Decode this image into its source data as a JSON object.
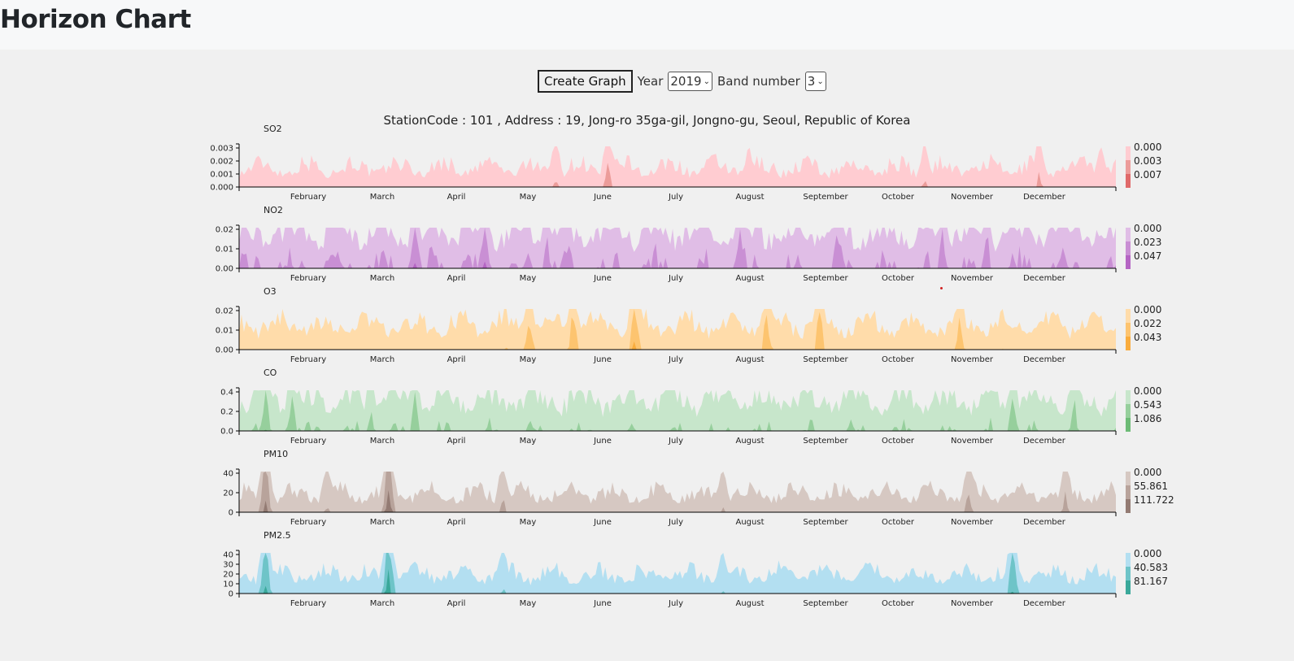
{
  "header": {
    "title": "Horizon Chart"
  },
  "controls": {
    "create_label": "Create Graph",
    "year_label": "Year",
    "year_value": "2019",
    "band_label": "Band number",
    "band_value": "3"
  },
  "station_text": "StationCode : 101 , Address : 19, Jong-ro 35ga-gil, Jongno-gu, Seoul, Republic of Korea",
  "chart_data": [
    {
      "type": "area",
      "title": "SO2",
      "months": [
        "February",
        "March",
        "April",
        "May",
        "June",
        "July",
        "August",
        "September",
        "October",
        "November",
        "December"
      ],
      "y_ticks": [
        "0.003",
        "0.002",
        "0.001",
        "0.000"
      ],
      "legend": [
        "0.000",
        "0.003",
        "0.007"
      ],
      "colors": [
        "#ffccd1",
        "#ec9c9a",
        "#e06a6a"
      ],
      "band_max": 0.0034,
      "base": 0.0022,
      "spikes": [
        [
          0.09,
          0.0012
        ],
        [
          0.36,
          0.0048
        ],
        [
          0.42,
          0.0062
        ],
        [
          0.91,
          0.0052
        ],
        [
          0.98,
          0.0044
        ],
        [
          0.58,
          0.0038
        ],
        [
          0.78,
          0.0045
        ]
      ]
    },
    {
      "type": "area",
      "title": "NO2",
      "months": [
        "February",
        "March",
        "April",
        "May",
        "June",
        "July",
        "August",
        "September",
        "October",
        "November",
        "December"
      ],
      "y_ticks": [
        "0.02",
        "0.01",
        "0.00"
      ],
      "legend": [
        "0.000",
        "0.023",
        "0.047"
      ],
      "colors": [
        "#e0bde6",
        "#c98fd4",
        "#b565c4"
      ],
      "band_max": 0.024,
      "base": 0.03,
      "spikes": [
        [
          0.2,
          0.058
        ],
        [
          0.28,
          0.055
        ],
        [
          0.35,
          0.05
        ],
        [
          0.57,
          0.052
        ],
        [
          0.68,
          0.054
        ],
        [
          0.8,
          0.05
        ],
        [
          0.85,
          0.053
        ]
      ]
    },
    {
      "type": "area",
      "title": "O3",
      "months": [
        "February",
        "March",
        "April",
        "May",
        "June",
        "July",
        "August",
        "September",
        "October",
        "November",
        "December"
      ],
      "y_ticks": [
        "0.02",
        "0.01",
        "0.00"
      ],
      "legend": [
        "0.000",
        "0.022",
        "0.043"
      ],
      "colors": [
        "#ffdcaa",
        "#fdc46f",
        "#f9ac3d"
      ],
      "band_max": 0.022,
      "base": 0.018,
      "spikes": [
        [
          0.33,
          0.046
        ],
        [
          0.38,
          0.05
        ],
        [
          0.45,
          0.056
        ],
        [
          0.6,
          0.048
        ],
        [
          0.66,
          0.052
        ],
        [
          0.82,
          0.044
        ]
      ]
    },
    {
      "type": "area",
      "title": "CO",
      "months": [
        "February",
        "March",
        "April",
        "May",
        "June",
        "July",
        "August",
        "September",
        "October",
        "November",
        "December"
      ],
      "y_ticks": [
        "0.4",
        "0.2",
        "0.0"
      ],
      "legend": [
        "0.000",
        "0.543",
        "1.086"
      ],
      "colors": [
        "#c7e6cb",
        "#96cf9c",
        "#6dbb76"
      ],
      "band_max": 0.55,
      "base": 0.58,
      "spikes": [
        [
          0.03,
          1.25
        ],
        [
          0.06,
          1.2
        ],
        [
          0.15,
          0.9
        ],
        [
          0.2,
          1.1
        ],
        [
          0.88,
          1.2
        ],
        [
          0.95,
          1.05
        ]
      ]
    },
    {
      "type": "area",
      "title": "PM10",
      "months": [
        "February",
        "March",
        "April",
        "May",
        "June",
        "July",
        "August",
        "September",
        "October",
        "November",
        "December"
      ],
      "y_ticks": [
        "40",
        "20",
        "0"
      ],
      "legend": [
        "0.000",
        "55.861",
        "111.722"
      ],
      "colors": [
        "#d6c8c2",
        "#b8a39b",
        "#937b73"
      ],
      "band_max": 56,
      "base": 34,
      "spikes": [
        [
          0.03,
          150
        ],
        [
          0.17,
          160
        ],
        [
          0.1,
          80
        ],
        [
          0.3,
          85
        ],
        [
          0.55,
          70
        ],
        [
          0.83,
          100
        ],
        [
          0.94,
          95
        ]
      ]
    },
    {
      "type": "area",
      "title": "PM2.5",
      "months": [
        "February",
        "March",
        "April",
        "May",
        "June",
        "July",
        "August",
        "September",
        "October",
        "November",
        "December"
      ],
      "y_ticks": [
        "40",
        "30",
        "20",
        "10",
        "0"
      ],
      "legend": [
        "0.000",
        "40.583",
        "81.167"
      ],
      "colors": [
        "#b3dff1",
        "#6ec4c8",
        "#3aa89a"
      ],
      "band_max": 41,
      "base": 26,
      "spikes": [
        [
          0.03,
          110
        ],
        [
          0.17,
          120
        ],
        [
          0.88,
          95
        ],
        [
          0.3,
          60
        ],
        [
          0.55,
          55
        ]
      ]
    }
  ]
}
